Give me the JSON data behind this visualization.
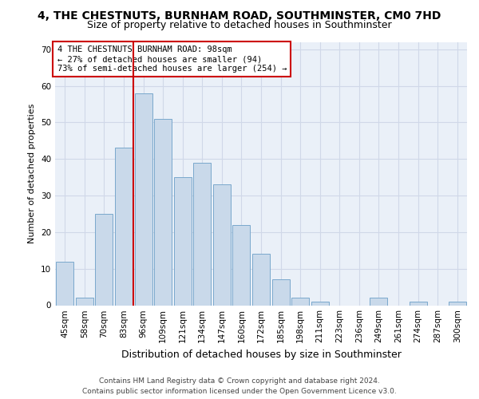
{
  "title": "4, THE CHESTNUTS, BURNHAM ROAD, SOUTHMINSTER, CM0 7HD",
  "subtitle": "Size of property relative to detached houses in Southminster",
  "xlabel": "Distribution of detached houses by size in Southminster",
  "ylabel": "Number of detached properties",
  "categories": [
    "45sqm",
    "58sqm",
    "70sqm",
    "83sqm",
    "96sqm",
    "109sqm",
    "121sqm",
    "134sqm",
    "147sqm",
    "160sqm",
    "172sqm",
    "185sqm",
    "198sqm",
    "211sqm",
    "223sqm",
    "236sqm",
    "249sqm",
    "261sqm",
    "274sqm",
    "287sqm",
    "300sqm"
  ],
  "values": [
    12,
    2,
    25,
    43,
    58,
    51,
    35,
    39,
    33,
    22,
    14,
    7,
    2,
    1,
    0,
    0,
    2,
    0,
    1,
    0,
    1
  ],
  "bar_color": "#c9d9ea",
  "bar_edge_color": "#7aa8cc",
  "property_line_idx": 4,
  "annotation_line1": "4 THE CHESTNUTS BURNHAM ROAD: 98sqm",
  "annotation_line2": "← 27% of detached houses are smaller (94)",
  "annotation_line3": "73% of semi-detached houses are larger (254) →",
  "annotation_box_color": "#ffffff",
  "annotation_box_edge": "#cc0000",
  "red_line_color": "#cc0000",
  "grid_color": "#d0d8e8",
  "bg_color": "#eaf0f8",
  "ylim": [
    0,
    72
  ],
  "yticks": [
    0,
    10,
    20,
    30,
    40,
    50,
    60,
    70
  ],
  "footer_line1": "Contains HM Land Registry data © Crown copyright and database right 2024.",
  "footer_line2": "Contains public sector information licensed under the Open Government Licence v3.0.",
  "title_fontsize": 10,
  "subtitle_fontsize": 9,
  "ylabel_fontsize": 8,
  "xlabel_fontsize": 9,
  "tick_fontsize": 7.5,
  "footer_fontsize": 6.5,
  "annotation_fontsize": 7.5
}
